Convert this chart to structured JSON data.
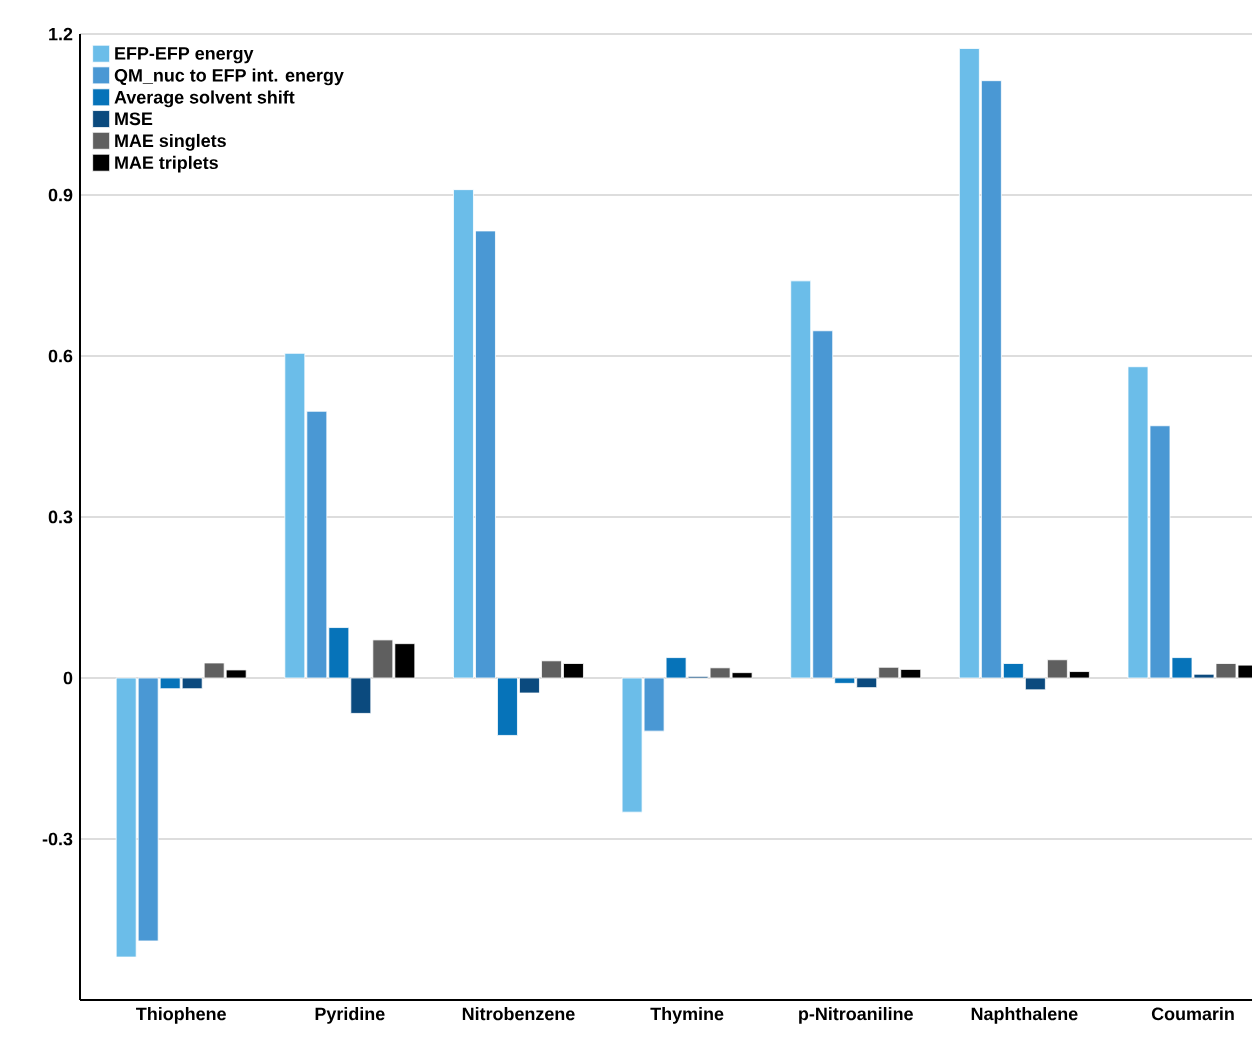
{
  "chart_data": {
    "type": "bar",
    "categories": [
      "Thiophene",
      "Pyridine",
      "Nitrobenzene",
      "Thymine",
      "p-Nitroaniline",
      "Naphthalene",
      "Coumarin"
    ],
    "series": [
      {
        "name": "EFP-EFP energy",
        "color": "#6bbde9",
        "values": [
          -0.52,
          0.605,
          0.91,
          -0.25,
          0.74,
          1.173,
          0.58
        ]
      },
      {
        "name": "QM_nuc to EFP int. energy",
        "color": "#4a98d4",
        "values": [
          -0.49,
          0.497,
          0.833,
          -0.099,
          0.647,
          1.113,
          0.47
        ]
      },
      {
        "name": "Average solvent shift",
        "color": "#0673b9",
        "values": [
          -0.02,
          0.094,
          -0.107,
          0.038,
          -0.01,
          0.027,
          0.038
        ]
      },
      {
        "name": "MSE",
        "color": "#0b4a7e",
        "values": [
          -0.02,
          -0.066,
          -0.028,
          0.003,
          -0.018,
          -0.022,
          0.007
        ]
      },
      {
        "name": "MAE singlets",
        "color": "#5f5f5f",
        "values": [
          0.028,
          0.071,
          0.032,
          0.019,
          0.02,
          0.034,
          0.027
        ]
      },
      {
        "name": "MAE triplets",
        "color": "#000000",
        "values": [
          0.015,
          0.064,
          0.027,
          0.01,
          0.016,
          0.012,
          0.024
        ]
      }
    ],
    "ylim": [
      -0.6,
      1.2
    ],
    "yticks": [
      -0.3,
      0,
      0.3,
      0.6,
      0.9,
      1.2
    ],
    "grid": "y",
    "legend": "top left"
  }
}
